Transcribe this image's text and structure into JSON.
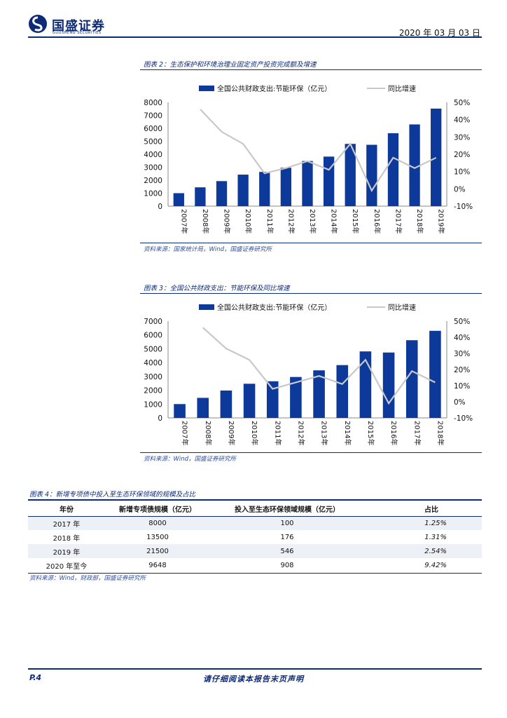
{
  "header": {
    "company": "国盛证券",
    "company_en": "GUOSHENG SECURITIES",
    "date": "2020 年 03 月 03 日"
  },
  "figure2": {
    "caption": "图表 2：生态保护和环境治理业固定资产投资完成额及增速",
    "source": "资料来源：国家统计局，Wind，国盛证券研究所"
  },
  "figure3": {
    "caption": "图表 3：全国公共财政支出：节能环保及同比增速",
    "source": "资料来源：Wind，国盛证券研究所"
  },
  "chart_data": [
    {
      "type": "bar",
      "title": "",
      "categories": [
        "2007年",
        "2008年",
        "2009年",
        "2010年",
        "2011年",
        "2012年",
        "2013年",
        "2014年",
        "2015年",
        "2016年",
        "2017年",
        "2018年",
        "2019年"
      ],
      "series": [
        {
          "name": "全国公共财政支出:节能环保（亿元）",
          "axis": "left",
          "color": "#0d3a9a",
          "values": [
            1000,
            1450,
            1930,
            2430,
            2640,
            2960,
            3480,
            3820,
            4800,
            4730,
            5620,
            6300,
            7520
          ]
        },
        {
          "name": "同比增速",
          "axis": "right",
          "type": "line",
          "color": "#c8c8c8",
          "values": [
            null,
            46,
            33,
            26,
            9,
            12,
            16,
            11,
            26,
            -1,
            18,
            12,
            18
          ]
        }
      ],
      "ylim": [
        0,
        8000
      ],
      "yticks": [
        0,
        1000,
        2000,
        3000,
        4000,
        5000,
        6000,
        7000,
        8000
      ],
      "y2lim": [
        -10,
        50
      ],
      "y2ticks": [
        "-10%",
        "0%",
        "10%",
        "20%",
        "30%",
        "40%",
        "50%"
      ]
    },
    {
      "type": "bar",
      "title": "",
      "categories": [
        "2007年",
        "2008年",
        "2009年",
        "2010年",
        "2011年",
        "2012年",
        "2013年",
        "2014年",
        "2015年",
        "2016年",
        "2017年",
        "2018年"
      ],
      "series": [
        {
          "name": "全国公共财政支出:节能环保（亿元）",
          "axis": "left",
          "color": "#0d3a9a",
          "values": [
            1000,
            1450,
            1980,
            2470,
            2650,
            2960,
            3440,
            3820,
            4810,
            4730,
            5620,
            6300
          ]
        },
        {
          "name": "同比增速",
          "axis": "right",
          "type": "line",
          "color": "#c8c8c8",
          "values": [
            null,
            46,
            33,
            26,
            8,
            12,
            16,
            11,
            26,
            -1,
            19,
            12
          ]
        }
      ],
      "ylim": [
        0,
        7000
      ],
      "yticks": [
        0,
        1000,
        2000,
        3000,
        4000,
        5000,
        6000,
        7000
      ],
      "y2lim": [
        -10,
        50
      ],
      "y2ticks": [
        "-10%",
        "0%",
        "10%",
        "20%",
        "30%",
        "40%",
        "50%"
      ]
    }
  ],
  "table4": {
    "caption": "图表 4：新增专项债中投入至生态环保领域的规模及占比",
    "headers": [
      "年份",
      "新增专项债规模（亿元）",
      "投入至生态环保领域规模（亿元）",
      "占比"
    ],
    "rows": [
      [
        "2017 年",
        "8000",
        "100",
        "1.25%"
      ],
      [
        "2018 年",
        "13500",
        "176",
        "1.31%"
      ],
      [
        "2019 年",
        "21500",
        "546",
        "2.54%"
      ],
      [
        "2020 年至今",
        "9648",
        "908",
        "9.42%"
      ]
    ],
    "source": "资料来源：Wind，财政部，国盛证券研究所"
  },
  "footer": {
    "page": "P.4",
    "disclaimer": "请仔细阅读本报告末页声明"
  }
}
